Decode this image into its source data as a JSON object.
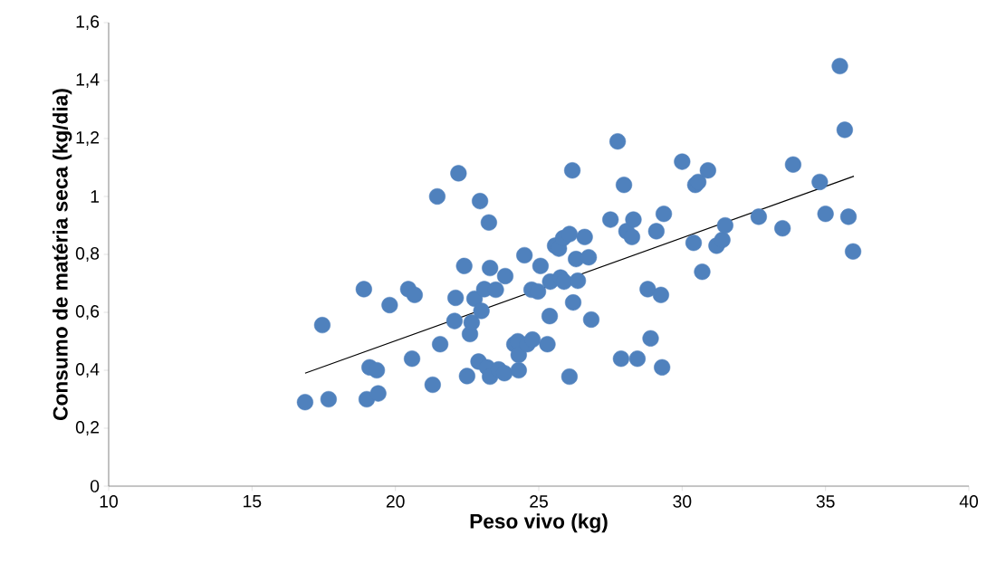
{
  "chart_data": {
    "type": "scatter",
    "xlabel": "Peso vivo (kg)",
    "ylabel": "Consumo de matéria seca (kg/dia)",
    "xlim": [
      10,
      40
    ],
    "xticks": [
      10,
      15,
      20,
      25,
      30,
      35,
      40
    ],
    "ylim": [
      0,
      1.6
    ],
    "yticks": [
      0,
      {
        "value": 0.2,
        "label": "0,2"
      },
      {
        "value": 0.4,
        "label": "0,4"
      },
      {
        "value": 0.6,
        "label": "0,6"
      },
      {
        "value": 0.8,
        "label": "0,8"
      },
      1,
      {
        "value": 1.2,
        "label": "1,2"
      },
      {
        "value": 1.4,
        "label": "1,4"
      },
      {
        "value": 1.6,
        "label": "1,6"
      }
    ],
    "grid": false,
    "series": [
      {
        "color": "#4f81bd",
        "marker": "circle",
        "x": [
          16.85,
          17.45,
          17.67,
          18.9,
          19.0,
          19.1,
          19.35,
          19.4,
          19.8,
          20.45,
          20.67,
          20.58,
          21.3,
          21.46,
          21.56,
          22.1,
          22.06,
          22.2,
          22.4,
          22.5,
          22.6,
          22.66,
          22.76,
          22.95,
          22.9,
          23.0,
          23.1,
          23.2,
          23.26,
          23.3,
          23.3,
          23.5,
          23.6,
          23.8,
          23.83,
          24.15,
          24.27,
          24.3,
          24.3,
          24.5,
          24.6,
          24.75,
          24.78,
          24.97,
          25.06,
          25.3,
          25.38,
          25.4,
          25.57,
          25.7,
          25.76,
          25.85,
          25.88,
          26.07,
          26.07,
          26.17,
          26.2,
          26.3,
          26.36,
          26.6,
          26.74,
          26.83,
          27.5,
          27.75,
          27.87,
          27.97,
          28.06,
          28.25,
          28.3,
          28.44,
          28.8,
          28.9,
          29.1,
          29.26,
          29.3,
          29.36,
          30.0,
          30.4,
          30.46,
          30.56,
          30.7,
          30.9,
          31.2,
          31.4,
          31.5,
          32.67,
          33.5,
          33.87,
          34.8,
          35.0,
          35.5,
          35.67,
          35.8,
          35.96
        ],
        "values": [
          0.29,
          0.556,
          0.3,
          0.68,
          0.3,
          0.41,
          0.4,
          0.32,
          0.625,
          0.68,
          0.66,
          0.44,
          0.35,
          1.0,
          0.49,
          0.65,
          0.57,
          1.08,
          0.76,
          0.38,
          0.525,
          0.565,
          0.647,
          0.984,
          0.43,
          0.605,
          0.68,
          0.41,
          0.91,
          0.753,
          0.378,
          0.678,
          0.403,
          0.39,
          0.725,
          0.49,
          0.5,
          0.453,
          0.4,
          0.797,
          0.49,
          0.678,
          0.506,
          0.672,
          0.76,
          0.49,
          0.587,
          0.706,
          0.83,
          0.82,
          0.72,
          0.856,
          0.706,
          0.87,
          0.378,
          1.09,
          0.634,
          0.784,
          0.709,
          0.86,
          0.79,
          0.575,
          0.92,
          1.19,
          0.44,
          1.04,
          0.88,
          0.86,
          0.92,
          0.44,
          0.68,
          0.51,
          0.88,
          0.66,
          0.41,
          0.94,
          1.12,
          0.84,
          1.04,
          1.05,
          0.74,
          1.09,
          0.83,
          0.85,
          0.9,
          0.93,
          0.89,
          1.11,
          1.05,
          0.94,
          1.45,
          1.23,
          0.93,
          0.81
        ]
      },
      {
        "type": "line",
        "color": "#000000",
        "marker": "none",
        "x": [
          16.85,
          35.99
        ],
        "values": [
          0.39,
          1.07
        ]
      }
    ]
  }
}
